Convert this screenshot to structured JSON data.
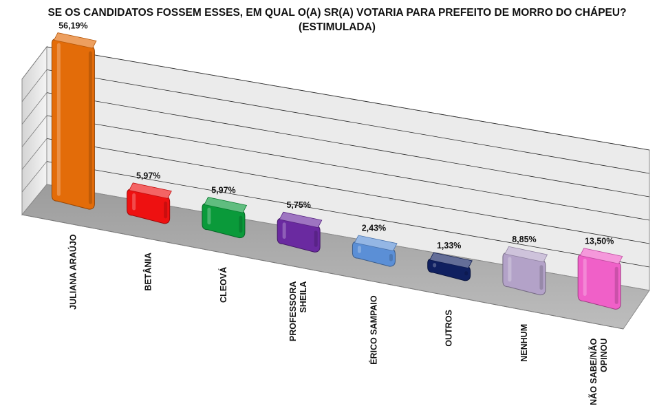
{
  "chart_data": {
    "type": "bar",
    "title": "SE OS CANDIDATOS FOSSEM ESSES, EM QUAL O(A) SR(A) VOTARIA PARA PREFEITO DE MORRO DO CHÁPEU? (ESTIMULADA)",
    "categories": [
      "JULIANA ARAÚJO",
      "BETÂNIA",
      "CLEOVÁ",
      "PROFESSORA SHEILA",
      "ÉRICO SAMPAIO",
      "OUTROS",
      "NENHUM",
      "NÃO SABE/NÃO OPINOU"
    ],
    "category_lines": [
      [
        "JULIANA ARAÚJO"
      ],
      [
        "BETÂNIA"
      ],
      [
        "CLEOVÁ"
      ],
      [
        "PROFESSORA",
        "SHEILA"
      ],
      [
        "ÉRICO SAMPAIO"
      ],
      [
        "OUTROS"
      ],
      [
        "NENHUM"
      ],
      [
        "NÃO SABE/NÃO",
        "OPINOU"
      ]
    ],
    "values": [
      56.19,
      5.97,
      5.97,
      5.75,
      2.43,
      1.33,
      8.85,
      13.5
    ],
    "value_labels": [
      "56,19%",
      "5,97%",
      "5,97%",
      "5,75%",
      "2,43%",
      "1,33%",
      "8,85%",
      "13,50%"
    ],
    "colors": [
      "#e36c09",
      "#ee1111",
      "#0a9a3a",
      "#6a2aa0",
      "#5b8fd6",
      "#102060",
      "#b3a2c8",
      "#f060c8"
    ],
    "ylim": [
      0,
      60
    ],
    "grid": true,
    "legend": "none"
  }
}
